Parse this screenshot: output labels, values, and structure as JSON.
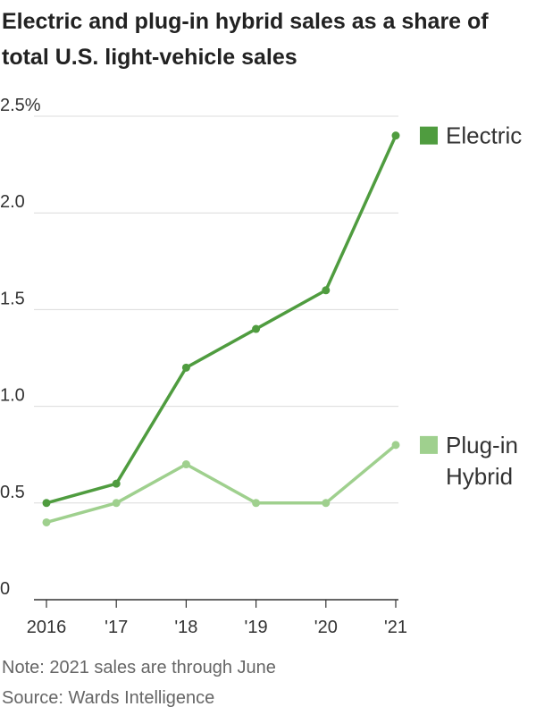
{
  "title": "Electric and plug-in hybrid sales as a share of total U.S. light-vehicle sales",
  "chart_data": {
    "type": "line",
    "title": "Electric and plug-in hybrid sales as a share of total U.S. light-vehicle sales",
    "x": [
      "2016",
      "'17",
      "'18",
      "'19",
      "'20",
      "'21"
    ],
    "y_ticks": [
      "0",
      "0.5",
      "1.0",
      "1.5",
      "2.0",
      "2.5%"
    ],
    "ylim": [
      0,
      2.5
    ],
    "grid": true,
    "legend": "right",
    "series": [
      {
        "name": "Electric",
        "color": "#4f9c3f",
        "values": [
          0.5,
          0.6,
          1.2,
          1.4,
          1.6,
          2.4
        ]
      },
      {
        "name": "Plug-in Hybrid",
        "name_lines": [
          "Plug-in",
          "Hybrid"
        ],
        "color": "#9fd08e",
        "values": [
          0.4,
          0.5,
          0.7,
          0.5,
          0.5,
          0.8
        ]
      }
    ]
  },
  "notes": {
    "note": "Note: 2021 sales are through June",
    "source": "Source: Wards Intelligence"
  }
}
